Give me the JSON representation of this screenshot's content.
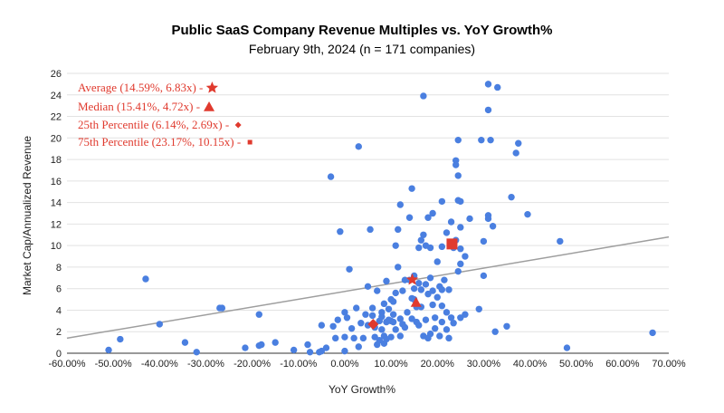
{
  "chart_data": {
    "type": "scatter",
    "title": "Public SaaS Company Revenue Multiples vs. YoY Growth%",
    "subtitle": "February 9th, 2024 (n = 171 companies)",
    "xlabel": "YoY Growth%",
    "ylabel": "Market Cap/Annualized Revenue",
    "xlim": [
      -60,
      70
    ],
    "ylim": [
      0,
      26
    ],
    "x_ticks": [
      "-60.00%",
      "-50.00%",
      "-40.00%",
      "-30.00%",
      "-20.00%",
      "-10.00%",
      "0.00%",
      "10.00%",
      "20.00%",
      "30.00%",
      "40.00%",
      "50.00%",
      "60.00%",
      "70.00%"
    ],
    "y_ticks": [
      "0",
      "2",
      "4",
      "6",
      "8",
      "10",
      "12",
      "14",
      "16",
      "18",
      "20",
      "22",
      "24",
      "26"
    ],
    "grid": "horizontal",
    "point_color": "#4a7fe0",
    "trendline": {
      "x": [
        -60,
        70
      ],
      "y": [
        1.4,
        10.8
      ],
      "color": "#9e9e9e"
    },
    "points": [
      [
        -51,
        0.3
      ],
      [
        -48.5,
        1.3
      ],
      [
        -43,
        6.9
      ],
      [
        -40,
        2.7
      ],
      [
        -34.5,
        1
      ],
      [
        -32,
        0.1
      ],
      [
        -27,
        4.2
      ],
      [
        -26.5,
        4.2
      ],
      [
        -21.5,
        0.5
      ],
      [
        -18.5,
        0.7
      ],
      [
        -18,
        0.8
      ],
      [
        -18.5,
        3.6
      ],
      [
        -15,
        1
      ],
      [
        -11,
        0.3
      ],
      [
        -8,
        0.8
      ],
      [
        -7.5,
        0.1
      ],
      [
        -5,
        0.2
      ],
      [
        -4,
        0.5
      ],
      [
        -5.5,
        0.1
      ],
      [
        -5,
        2.6
      ],
      [
        -3,
        16.4
      ],
      [
        -2,
        1.4
      ],
      [
        -1.5,
        3.1
      ],
      [
        -1,
        11.3
      ],
      [
        -2.5,
        2.5
      ],
      [
        0,
        0.2
      ],
      [
        0,
        1.5
      ],
      [
        0,
        3.8
      ],
      [
        1,
        7.8
      ],
      [
        0.5,
        3.3
      ],
      [
        2,
        1.4
      ],
      [
        2.5,
        4.2
      ],
      [
        3,
        19.2
      ],
      [
        3.5,
        2.8
      ],
      [
        4,
        1.4
      ],
      [
        4.5,
        3.6
      ],
      [
        5,
        6.2
      ],
      [
        5,
        2.6
      ],
      [
        5.5,
        11.5
      ],
      [
        6,
        4.2
      ],
      [
        6.5,
        1.5
      ],
      [
        6.5,
        2.4
      ],
      [
        7,
        0.8
      ],
      [
        7,
        5.8
      ],
      [
        7.5,
        3
      ],
      [
        8,
        3.8
      ],
      [
        8,
        2.2
      ],
      [
        8.5,
        1.6
      ],
      [
        8.5,
        4.6
      ],
      [
        9,
        2.9
      ],
      [
        9,
        6.7
      ],
      [
        9,
        1.3
      ],
      [
        9.5,
        3.1
      ],
      [
        9.5,
        4.1
      ],
      [
        10,
        5
      ],
      [
        10,
        3
      ],
      [
        10,
        1.5
      ],
      [
        10.5,
        2.9
      ],
      [
        10.5,
        3.6
      ],
      [
        11,
        5.6
      ],
      [
        11,
        10
      ],
      [
        11.5,
        8
      ],
      [
        11.5,
        11.5
      ],
      [
        12,
        13.8
      ],
      [
        12,
        3.2
      ],
      [
        12,
        1.6
      ],
      [
        12.5,
        2.7
      ],
      [
        13,
        6.8
      ],
      [
        13,
        2.4
      ],
      [
        14,
        6.8
      ],
      [
        14,
        12.6
      ],
      [
        14.5,
        5.1
      ],
      [
        14.5,
        3.2
      ],
      [
        14.5,
        15.3
      ],
      [
        15,
        7.2
      ],
      [
        15,
        6
      ],
      [
        15,
        5
      ],
      [
        15.5,
        4.3
      ],
      [
        15.5,
        2.9
      ],
      [
        16,
        9.8
      ],
      [
        16,
        6.5
      ],
      [
        16.5,
        5.9
      ],
      [
        16.5,
        10.5
      ],
      [
        16.5,
        4.3
      ],
      [
        17,
        11
      ],
      [
        17,
        1.6
      ],
      [
        17.5,
        3.1
      ],
      [
        17,
        23.9
      ],
      [
        17.5,
        10
      ],
      [
        18,
        1.4
      ],
      [
        18,
        5.5
      ],
      [
        18,
        12.6
      ],
      [
        18.5,
        7
      ],
      [
        18.5,
        9.8
      ],
      [
        18.5,
        1.8
      ],
      [
        19,
        13
      ],
      [
        19,
        5.8
      ],
      [
        19.5,
        3.3
      ],
      [
        19.5,
        2.3
      ],
      [
        20,
        5.2
      ],
      [
        20,
        8.5
      ],
      [
        20.5,
        6.2
      ],
      [
        21,
        14.1
      ],
      [
        21,
        9.9
      ],
      [
        21,
        5.9
      ],
      [
        21,
        4.4
      ],
      [
        21,
        2.9
      ],
      [
        21.5,
        6.8
      ],
      [
        22,
        11.2
      ],
      [
        22,
        3.8
      ],
      [
        22.5,
        1.4
      ],
      [
        22.5,
        5.9
      ],
      [
        23,
        12.2
      ],
      [
        23,
        3.3
      ],
      [
        23.5,
        9.8
      ],
      [
        23.5,
        2.8
      ],
      [
        24,
        10.5
      ],
      [
        24,
        17.9
      ],
      [
        24,
        17.5
      ],
      [
        24.5,
        19.8
      ],
      [
        24.5,
        16.5
      ],
      [
        24.5,
        14.2
      ],
      [
        24.5,
        7.6
      ],
      [
        25,
        14.1
      ],
      [
        25,
        9.7
      ],
      [
        25,
        8.3
      ],
      [
        25,
        3.3
      ],
      [
        25,
        11.7
      ],
      [
        26,
        9
      ],
      [
        26,
        3.6
      ],
      [
        27,
        12.5
      ],
      [
        29,
        4.1
      ],
      [
        29.5,
        19.8
      ],
      [
        30,
        10.4
      ],
      [
        30,
        7.2
      ],
      [
        31,
        25
      ],
      [
        31,
        22.6
      ],
      [
        31,
        12.5
      ],
      [
        31,
        12.8
      ],
      [
        31.5,
        19.8
      ],
      [
        32,
        11.8
      ],
      [
        32.5,
        2
      ],
      [
        33,
        24.7
      ],
      [
        35,
        2.5
      ],
      [
        36,
        14.5
      ],
      [
        37,
        18.6
      ],
      [
        37.5,
        19.5
      ],
      [
        39.5,
        12.9
      ],
      [
        46.5,
        10.4
      ],
      [
        48,
        0.5
      ],
      [
        66.5,
        1.9
      ],
      [
        8,
        3.4
      ],
      [
        10.5,
        4.8
      ],
      [
        13.5,
        3.8
      ],
      [
        16,
        2.6
      ],
      [
        19,
        4.5
      ],
      [
        22,
        2.2
      ],
      [
        7.5,
        1.2
      ],
      [
        11,
        2.2
      ],
      [
        6,
        3.5
      ],
      [
        8.5,
        0.9
      ],
      [
        12.5,
        5.8
      ],
      [
        17.5,
        6.4
      ],
      [
        20.5,
        1.6
      ],
      [
        3,
        0.6
      ],
      [
        1.5,
        2.3
      ]
    ],
    "markers": [
      {
        "label": "Average (14.59%, 6.83x) -",
        "symbol": "star",
        "x": 14.59,
        "y": 6.83,
        "color": "#e03a2e"
      },
      {
        "label": "Median (15.41%, 4.72x) -",
        "symbol": "triangle",
        "x": 15.41,
        "y": 4.72,
        "color": "#e03a2e"
      },
      {
        "label": "25th Percentile (6.14%, 2.69x) -",
        "symbol": "diamond",
        "x": 6.14,
        "y": 2.69,
        "color": "#e03a2e"
      },
      {
        "label": "75th Percentile (23.17%, 10.15x) -",
        "symbol": "square",
        "x": 23.17,
        "y": 10.15,
        "color": "#e03a2e"
      }
    ]
  }
}
